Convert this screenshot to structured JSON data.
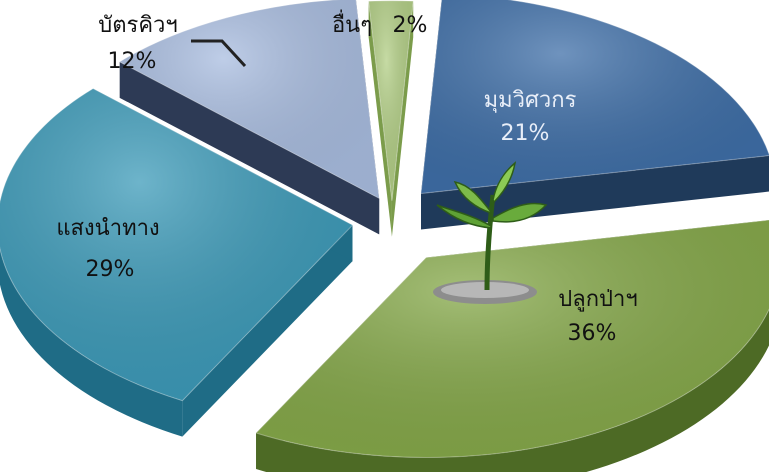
{
  "chart_data": {
    "type": "pie",
    "title": "",
    "categories": [
      "มุมวิศวกร",
      "ปลูกป่าฯ",
      "แสงนำทาง",
      "บัตรคิวฯ",
      "อื่นๆ"
    ],
    "values": [
      21,
      36,
      29,
      12,
      2
    ],
    "labels": {
      "pct": [
        "21%",
        "36%",
        "29%",
        "12%",
        "2%"
      ]
    },
    "colors": [
      "#3f6fa8",
      "#86a94a",
      "#3d9bb9",
      "#a9bde0",
      "#b3cf86"
    ],
    "side_colors": [
      "#1f3a5a",
      "#4d6a25",
      "#1f6c86",
      "#2d3a55",
      "#7b9c4b"
    ],
    "legend": "none",
    "style": "3d-exploded"
  }
}
